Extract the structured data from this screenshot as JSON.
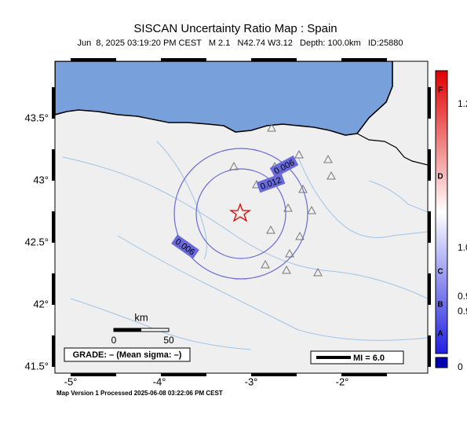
{
  "header": {
    "title": "SISCAN Uncertainty Ratio Map : Spain",
    "subtitle": "Jun  8, 2025 03:19:20 PM CEST   M 2.1   N42.74 W3.12   Depth: 100.0km   ID:25880"
  },
  "map": {
    "lat_labels": [
      "43.5°",
      "43°",
      "42.5°",
      "42°",
      "41.5°"
    ],
    "lon_labels": [
      "-5°",
      "-4°",
      "-3°",
      "-2°"
    ],
    "contour_labels": [
      "0.006",
      "0.012",
      "0.006"
    ],
    "scale": {
      "title": "km",
      "labels": [
        "0",
        "50"
      ]
    },
    "grade": "GRADE: – (Mean sigma: –)",
    "legend": "MI = 6.0"
  },
  "colorbar": {
    "labels": [
      "F",
      "1.2",
      "D",
      "1.0",
      "C",
      "0.9",
      "B",
      "0.9",
      "A",
      "0"
    ]
  },
  "footer": "Map Version 1 Processed 2025-06-08 03:22:06 PM CEST"
}
